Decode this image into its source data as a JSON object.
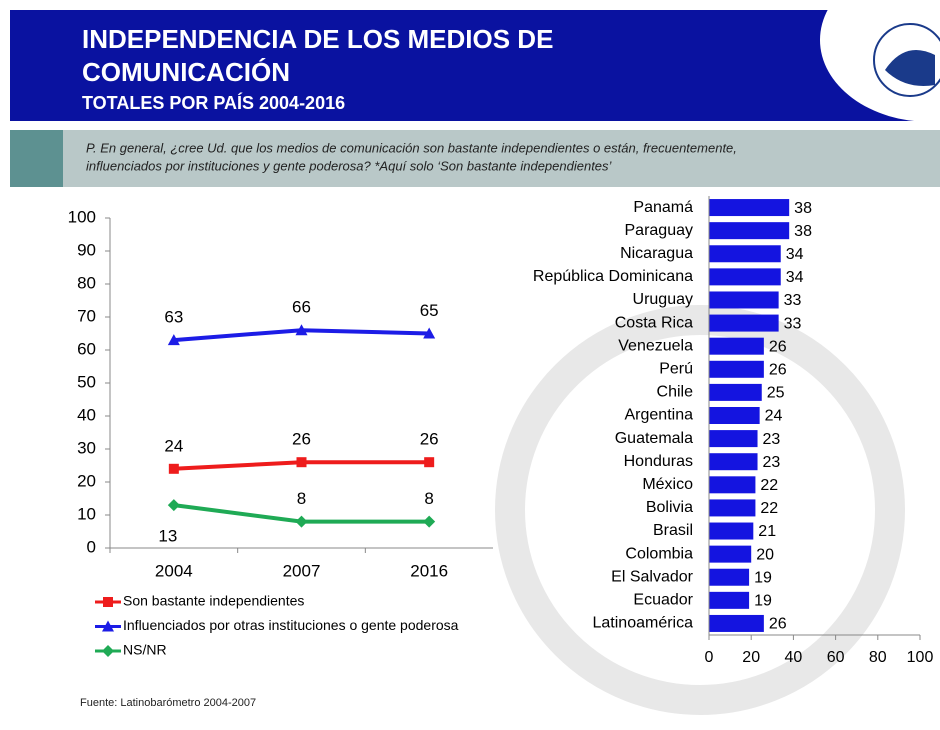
{
  "header": {
    "title_line1": "INDEPENDENCIA DE LOS MEDIOS DE",
    "title_line2": "COMUNICACIÓN",
    "subtitle": "TOTALES POR PAÍS 2004-2016"
  },
  "question": {
    "line1": "P. En general, ¿cree Ud. que los medios de comunicación son bastante independientes o están, frecuentemente,",
    "line2": "influenciados por instituciones y gente poderosa? *Aquí solo ‘Son bastante independientes’"
  },
  "chart_data": [
    {
      "type": "line",
      "categories": [
        "2004",
        "2007",
        "2016"
      ],
      "series": [
        {
          "name": "Son bastante independientes",
          "color": "#ee1c1c",
          "marker": "square",
          "values": [
            24,
            26,
            26
          ]
        },
        {
          "name": "Influenciados por otras instituciones o gente poderosa",
          "color": "#1c1ce6",
          "marker": "triangle",
          "values": [
            63,
            66,
            65
          ]
        },
        {
          "name": "NS/NR",
          "color": "#1faa55",
          "marker": "diamond",
          "values": [
            13,
            8,
            8
          ]
        }
      ],
      "ylim": [
        0,
        100
      ],
      "yticks": [
        0,
        10,
        20,
        30,
        40,
        50,
        60,
        70,
        80,
        90,
        100
      ],
      "legend": "bottom-left",
      "data_labels": true
    },
    {
      "type": "barh",
      "categories": [
        "Panamá",
        "Paraguay",
        "Nicaragua",
        "República Dominicana",
        "Uruguay",
        "Costa Rica",
        "Venezuela",
        "Perú",
        "Chile",
        "Argentina",
        "Guatemala",
        "Honduras",
        "México",
        "Bolivia",
        "Brasil",
        "Colombia",
        "El Salvador",
        "Ecuador",
        "Latinoamérica"
      ],
      "values": [
        38,
        38,
        34,
        34,
        33,
        33,
        26,
        26,
        25,
        24,
        23,
        23,
        22,
        22,
        21,
        20,
        19,
        19,
        26
      ],
      "color": "#1414e0",
      "xlim": [
        0,
        100
      ],
      "xticks": [
        0,
        20,
        40,
        60,
        80,
        100
      ],
      "data_labels": true
    }
  ],
  "source": "Fuente: Latinobarómetro 2004-2007"
}
